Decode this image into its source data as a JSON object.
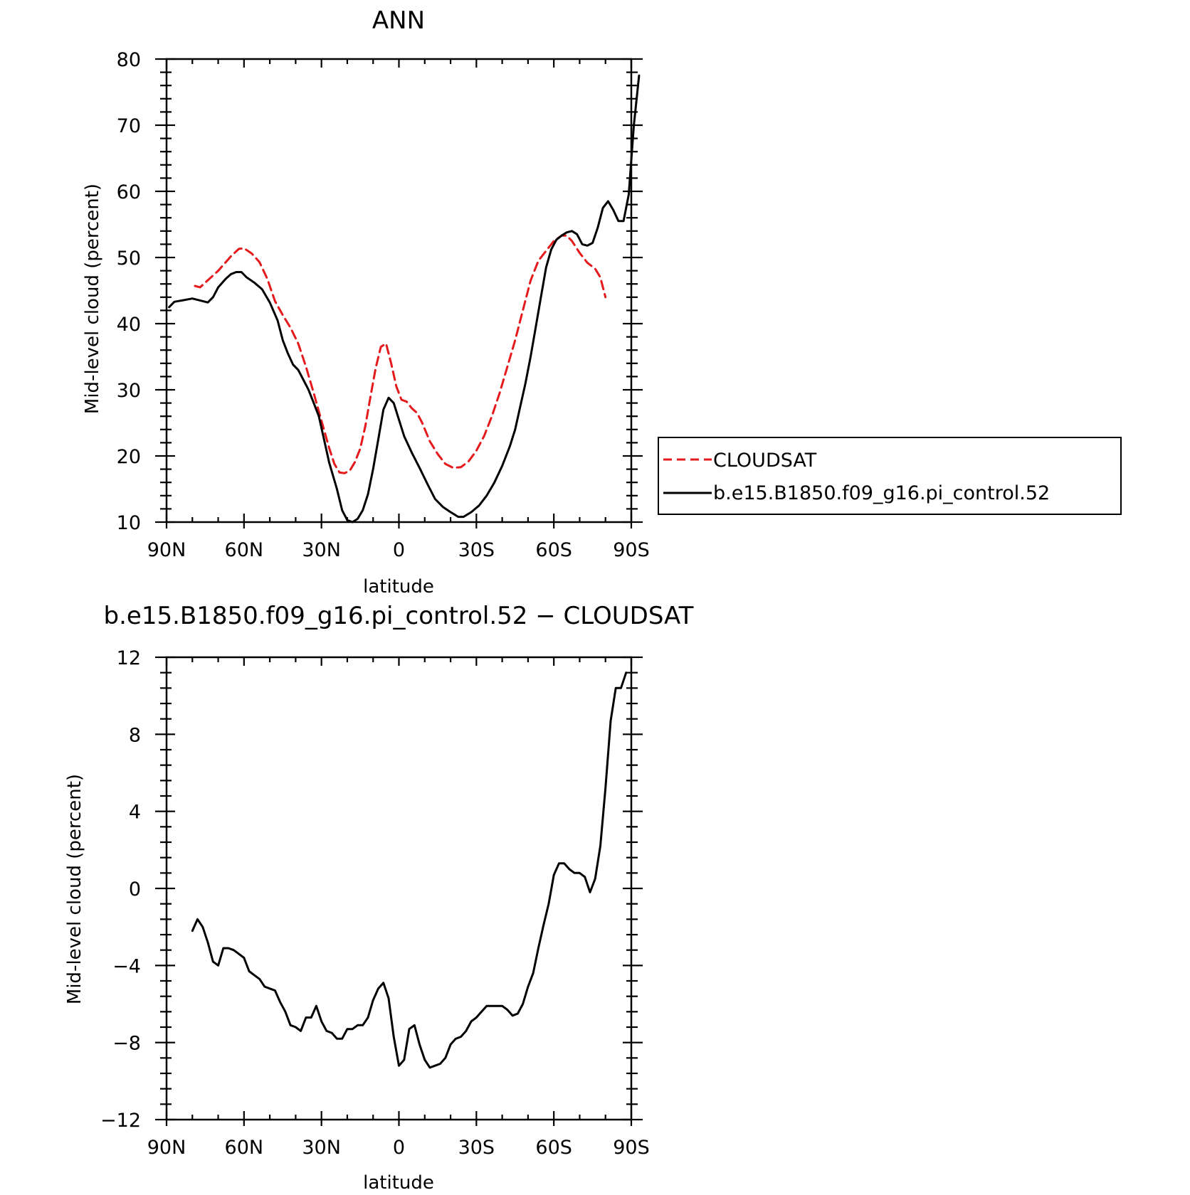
{
  "chart_data": [
    {
      "type": "line",
      "title": "ANN",
      "xlabel": "latitude",
      "ylabel": "Mid-level cloud (percent)",
      "xlim": [
        90,
        -90
      ],
      "ylim": [
        10,
        80
      ],
      "x_ticks": [
        {
          "value": 90,
          "label": "90N"
        },
        {
          "value": 60,
          "label": "60N"
        },
        {
          "value": 30,
          "label": "30N"
        },
        {
          "value": 0,
          "label": "0"
        },
        {
          "value": -30,
          "label": "30S"
        },
        {
          "value": -60,
          "label": "60S"
        },
        {
          "value": -90,
          "label": "90S"
        }
      ],
      "y_ticks": [
        {
          "value": 10,
          "label": "10"
        },
        {
          "value": 20,
          "label": "20"
        },
        {
          "value": 30,
          "label": "30"
        },
        {
          "value": 40,
          "label": "40"
        },
        {
          "value": 50,
          "label": "50"
        },
        {
          "value": 60,
          "label": "60"
        },
        {
          "value": 70,
          "label": "70"
        },
        {
          "value": 80,
          "label": "80"
        }
      ],
      "grid": false,
      "legend_position": "right",
      "series": [
        {
          "name": "CLOUDSAT",
          "color": "#e41a1c",
          "dash": "dashed",
          "points": [
            [
              79,
              45.7
            ],
            [
              77,
              45.5
            ],
            [
              75,
              46.2
            ],
            [
              70,
              48.0
            ],
            [
              65,
              50.2
            ],
            [
              62,
              51.3
            ],
            [
              60,
              51.4
            ],
            [
              57,
              50.6
            ],
            [
              54,
              49.3
            ],
            [
              51,
              46.8
            ],
            [
              48,
              43.4
            ],
            [
              45,
              41.3
            ],
            [
              42,
              39.4
            ],
            [
              39,
              37.0
            ],
            [
              36,
              33.5
            ],
            [
              33,
              29.5
            ],
            [
              30,
              25.3
            ],
            [
              27,
              21.2
            ],
            [
              25,
              18.8
            ],
            [
              23,
              17.5
            ],
            [
              21,
              17.4
            ],
            [
              19,
              17.8
            ],
            [
              17,
              19.1
            ],
            [
              15,
              21.1
            ],
            [
              13,
              24.5
            ],
            [
              11,
              29.0
            ],
            [
              9,
              33.3
            ],
            [
              7,
              36.5
            ],
            [
              5,
              37.0
            ],
            [
              3,
              34.0
            ],
            [
              1,
              30.5
            ],
            [
              -1,
              28.5
            ],
            [
              -3,
              28.2
            ],
            [
              -5,
              27.2
            ],
            [
              -7,
              26.5
            ],
            [
              -9,
              25.0
            ],
            [
              -12,
              22.2
            ],
            [
              -15,
              20.3
            ],
            [
              -18,
              18.8
            ],
            [
              -21,
              18.2
            ],
            [
              -24,
              18.3
            ],
            [
              -27,
              19.2
            ],
            [
              -30,
              20.8
            ],
            [
              -33,
              23.0
            ],
            [
              -36,
              26.0
            ],
            [
              -39,
              29.5
            ],
            [
              -42,
              33.5
            ],
            [
              -45,
              37.5
            ],
            [
              -48,
              42.0
            ],
            [
              -51,
              46.5
            ],
            [
              -54,
              49.5
            ],
            [
              -57,
              51.0
            ],
            [
              -60,
              52.5
            ],
            [
              -63,
              53.3
            ],
            [
              -65,
              53.3
            ],
            [
              -67,
              52.5
            ],
            [
              -70,
              50.7
            ],
            [
              -73,
              49.2
            ],
            [
              -76,
              48.3
            ],
            [
              -78,
              47.0
            ],
            [
              -80,
              44.0
            ]
          ]
        },
        {
          "name": "b.e15.B1850.f09_g16.pi_control.52",
          "color": "#000000",
          "dash": "solid",
          "points": [
            [
              89,
              42.5
            ],
            [
              87,
              43.3
            ],
            [
              84,
              43.5
            ],
            [
              80,
              43.8
            ],
            [
              77,
              43.5
            ],
            [
              74,
              43.2
            ],
            [
              72,
              44.0
            ],
            [
              70,
              45.5
            ],
            [
              67,
              46.8
            ],
            [
              65,
              47.5
            ],
            [
              63,
              47.8
            ],
            [
              61,
              47.8
            ],
            [
              59,
              47.0
            ],
            [
              56,
              46.2
            ],
            [
              53,
              45.2
            ],
            [
              50,
              43.2
            ],
            [
              47,
              40.5
            ],
            [
              45,
              37.5
            ],
            [
              43,
              35.5
            ],
            [
              41,
              33.8
            ],
            [
              39,
              33.0
            ],
            [
              37,
              31.5
            ],
            [
              35,
              30.0
            ],
            [
              33,
              28.0
            ],
            [
              31,
              26.0
            ],
            [
              29,
              22.5
            ],
            [
              27,
              19.0
            ],
            [
              24,
              15.0
            ],
            [
              22,
              11.8
            ],
            [
              20,
              10.3
            ],
            [
              18,
              10.0
            ],
            [
              16,
              10.5
            ],
            [
              14,
              11.8
            ],
            [
              12,
              14.2
            ],
            [
              10,
              18.0
            ],
            [
              8,
              22.5
            ],
            [
              6,
              27.0
            ],
            [
              4,
              28.8
            ],
            [
              2,
              28.0
            ],
            [
              0,
              25.5
            ],
            [
              -2,
              23.0
            ],
            [
              -5,
              20.5
            ],
            [
              -8,
              18.2
            ],
            [
              -11,
              15.8
            ],
            [
              -14,
              13.5
            ],
            [
              -17,
              12.3
            ],
            [
              -20,
              11.5
            ],
            [
              -23,
              10.8
            ],
            [
              -25,
              10.8
            ],
            [
              -28,
              11.5
            ],
            [
              -31,
              12.5
            ],
            [
              -34,
              14.0
            ],
            [
              -37,
              16.0
            ],
            [
              -40,
              18.5
            ],
            [
              -43,
              21.5
            ],
            [
              -45,
              24.0
            ],
            [
              -47,
              27.5
            ],
            [
              -49,
              31.0
            ],
            [
              -51,
              35.0
            ],
            [
              -53,
              39.5
            ],
            [
              -55,
              44.0
            ],
            [
              -57,
              48.5
            ],
            [
              -59,
              51.2
            ],
            [
              -61,
              52.7
            ],
            [
              -63,
              53.3
            ],
            [
              -65,
              53.8
            ],
            [
              -67,
              54.0
            ],
            [
              -69,
              53.5
            ],
            [
              -71,
              52.0
            ],
            [
              -73,
              51.8
            ],
            [
              -75,
              52.2
            ],
            [
              -77,
              54.5
            ],
            [
              -79,
              57.5
            ],
            [
              -81,
              58.5
            ],
            [
              -83,
              57.2
            ],
            [
              -85,
              55.5
            ],
            [
              -87,
              55.5
            ],
            [
              -89,
              59.5
            ],
            [
              -91,
              70.0
            ],
            [
              -93,
              77.5
            ]
          ]
        }
      ]
    },
    {
      "type": "line",
      "title": "b.e15.B1850.f09_g16.pi_control.52 − CLOUDSAT",
      "xlabel": "latitude",
      "ylabel": "Mid-level cloud (percent)",
      "xlim": [
        90,
        -90
      ],
      "ylim": [
        -12,
        12
      ],
      "x_ticks": [
        {
          "value": 90,
          "label": "90N"
        },
        {
          "value": 60,
          "label": "60N"
        },
        {
          "value": 30,
          "label": "30N"
        },
        {
          "value": 0,
          "label": "0"
        },
        {
          "value": -30,
          "label": "30S"
        },
        {
          "value": -60,
          "label": "60S"
        },
        {
          "value": -90,
          "label": "90S"
        }
      ],
      "y_ticks": [
        {
          "value": -12,
          "label": "−12"
        },
        {
          "value": -8,
          "label": "−8"
        },
        {
          "value": -4,
          "label": "−4"
        },
        {
          "value": 0,
          "label": "0"
        },
        {
          "value": 4,
          "label": "4"
        },
        {
          "value": 8,
          "label": "8"
        },
        {
          "value": 12,
          "label": "12"
        }
      ],
      "grid": false,
      "series": [
        {
          "color": "#000000",
          "dash": "solid",
          "points": [
            [
              80,
              -2.2
            ],
            [
              78,
              -1.6
            ],
            [
              76,
              -2.0
            ],
            [
              74,
              -2.8
            ],
            [
              72,
              -3.8
            ],
            [
              70,
              -4.0
            ],
            [
              68,
              -3.1
            ],
            [
              66,
              -3.1
            ],
            [
              64,
              -3.2
            ],
            [
              62,
              -3.4
            ],
            [
              60,
              -3.6
            ],
            [
              58,
              -4.3
            ],
            [
              56,
              -4.5
            ],
            [
              54,
              -4.7
            ],
            [
              52,
              -5.1
            ],
            [
              50,
              -5.2
            ],
            [
              48,
              -5.3
            ],
            [
              46,
              -5.9
            ],
            [
              44,
              -6.4
            ],
            [
              42,
              -7.1
            ],
            [
              40,
              -7.2
            ],
            [
              38,
              -7.4
            ],
            [
              36,
              -6.7
            ],
            [
              34,
              -6.7
            ],
            [
              32,
              -6.1
            ],
            [
              30,
              -6.9
            ],
            [
              28,
              -7.4
            ],
            [
              26,
              -7.5
            ],
            [
              24,
              -7.8
            ],
            [
              22,
              -7.8
            ],
            [
              20,
              -7.3
            ],
            [
              18,
              -7.3
            ],
            [
              16,
              -7.1
            ],
            [
              14,
              -7.1
            ],
            [
              12,
              -6.7
            ],
            [
              10,
              -5.8
            ],
            [
              8,
              -5.2
            ],
            [
              6,
              -4.9
            ],
            [
              4,
              -5.7
            ],
            [
              2,
              -7.7
            ],
            [
              0,
              -9.2
            ],
            [
              -2,
              -8.9
            ],
            [
              -4,
              -7.3
            ],
            [
              -6,
              -7.1
            ],
            [
              -8,
              -8.1
            ],
            [
              -10,
              -8.9
            ],
            [
              -12,
              -9.3
            ],
            [
              -14,
              -9.2
            ],
            [
              -16,
              -9.1
            ],
            [
              -18,
              -8.8
            ],
            [
              -20,
              -8.1
            ],
            [
              -22,
              -7.8
            ],
            [
              -24,
              -7.7
            ],
            [
              -26,
              -7.4
            ],
            [
              -28,
              -6.9
            ],
            [
              -30,
              -6.7
            ],
            [
              -32,
              -6.4
            ],
            [
              -34,
              -6.1
            ],
            [
              -36,
              -6.1
            ],
            [
              -38,
              -6.1
            ],
            [
              -40,
              -6.1
            ],
            [
              -42,
              -6.3
            ],
            [
              -44,
              -6.6
            ],
            [
              -46,
              -6.5
            ],
            [
              -48,
              -6.0
            ],
            [
              -50,
              -5.1
            ],
            [
              -52,
              -4.4
            ],
            [
              -54,
              -3.1
            ],
            [
              -56,
              -1.9
            ],
            [
              -58,
              -0.8
            ],
            [
              -60,
              0.7
            ],
            [
              -62,
              1.3
            ],
            [
              -64,
              1.3
            ],
            [
              -66,
              1.0
            ],
            [
              -68,
              0.8
            ],
            [
              -70,
              0.8
            ],
            [
              -72,
              0.6
            ],
            [
              -74,
              -0.2
            ],
            [
              -76,
              0.5
            ],
            [
              -78,
              2.2
            ],
            [
              -80,
              5.2
            ],
            [
              -82,
              8.7
            ],
            [
              -84,
              10.4
            ],
            [
              -86,
              10.4
            ],
            [
              -88,
              11.2
            ]
          ]
        }
      ]
    }
  ]
}
